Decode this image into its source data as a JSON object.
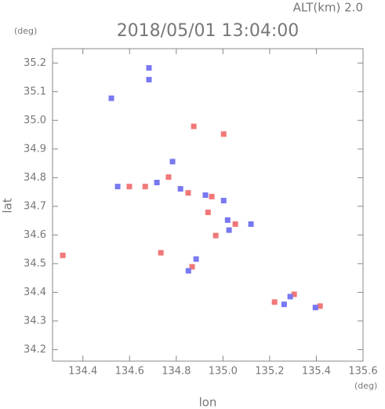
{
  "chart_data": {
    "type": "scatter",
    "title": "2018/05/01 13:04:00",
    "subtitle": "ALT(km) 2.0",
    "x_label": "lon",
    "y_label": "lat",
    "x_unit": "(deg)",
    "y_unit": "(deg)",
    "xlim": [
      134.27,
      135.6
    ],
    "ylim": [
      34.16,
      35.25
    ],
    "xticks": [
      134.4,
      134.6,
      134.8,
      {
        "value": 135,
        "label": "135.0"
      },
      135.2,
      135.4,
      135.6
    ],
    "yticks": [
      34.2,
      34.3,
      34.4,
      34.5,
      34.6,
      34.7,
      34.8,
      34.9,
      {
        "value": 35,
        "label": "35.0"
      },
      35.1,
      35.2
    ],
    "series": [
      {
        "color": "#f07878",
        "x": [
          134.314,
          134.875,
          135.003,
          134.767,
          134.599,
          134.667,
          134.851,
          134.952,
          134.936,
          135.053,
          134.969,
          134.868,
          134.734,
          135.221,
          135.305,
          135.416
        ],
        "values": [
          34.529,
          34.979,
          34.952,
          34.802,
          34.769,
          34.769,
          34.747,
          34.734,
          34.679,
          34.638,
          34.598,
          34.489,
          34.538,
          34.366,
          34.393,
          34.352
        ]
      },
      {
        "color": "#7878f0",
        "x": [
          134.683,
          134.683,
          134.522,
          134.784,
          134.549,
          134.717,
          134.818,
          134.925,
          135.003,
          135.02,
          135.026,
          134.885,
          134.852,
          135.12,
          135.288,
          135.262,
          135.396
        ],
        "values": [
          35.142,
          35.183,
          35.077,
          34.856,
          34.769,
          34.783,
          34.761,
          34.739,
          34.72,
          34.652,
          34.617,
          34.516,
          34.475,
          34.638,
          34.385,
          34.358,
          34.347
        ]
      }
    ]
  }
}
